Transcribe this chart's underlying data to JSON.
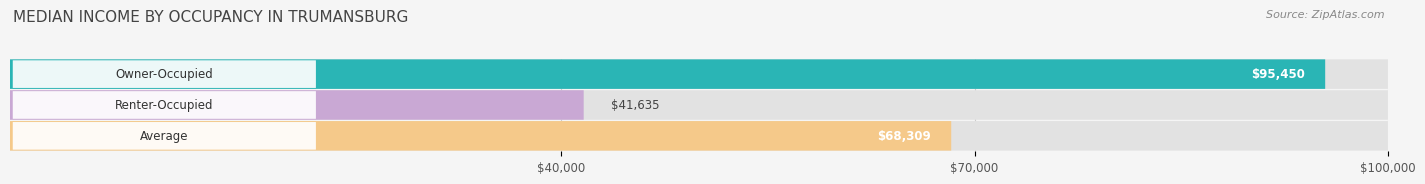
{
  "title": "MEDIAN INCOME BY OCCUPANCY IN TRUMANSBURG",
  "source": "Source: ZipAtlas.com",
  "categories": [
    "Owner-Occupied",
    "Renter-Occupied",
    "Average"
  ],
  "values": [
    95450,
    41635,
    68309
  ],
  "bar_colors": [
    "#2ab5b5",
    "#c9a8d4",
    "#f5c98a"
  ],
  "bar_labels": [
    "$95,450",
    "$41,635",
    "$68,309"
  ],
  "xlim": [
    0,
    100000
  ],
  "xticks": [
    40000,
    70000,
    100000
  ],
  "xtick_labels": [
    "$40,000",
    "$70,000",
    "$100,000"
  ],
  "bg_color": "#f5f5f5",
  "bar_bg_color": "#e2e2e2",
  "title_fontsize": 11,
  "label_fontsize": 8.5,
  "source_fontsize": 8
}
